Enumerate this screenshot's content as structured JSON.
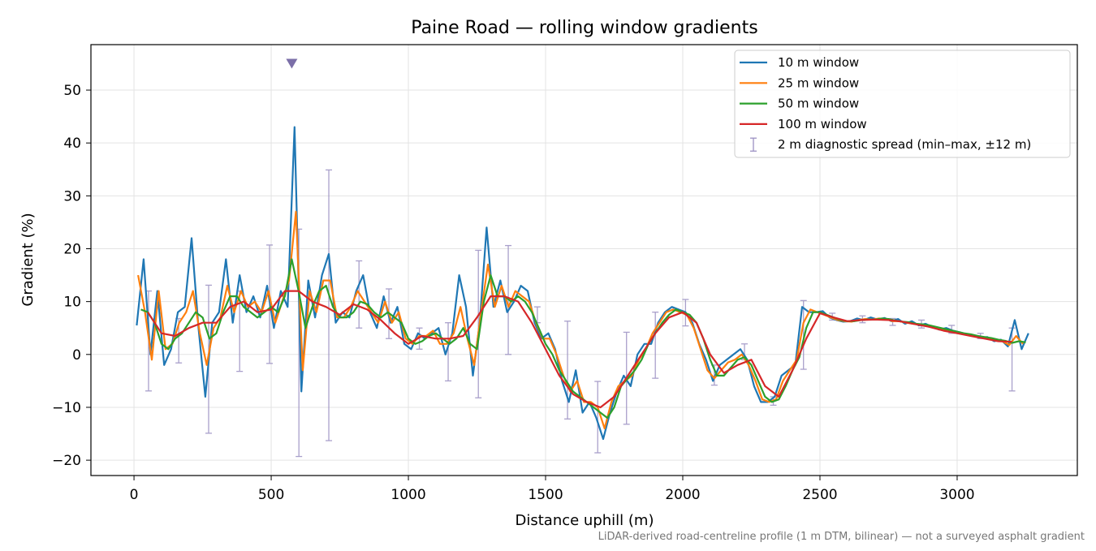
{
  "chart_data": {
    "type": "line",
    "title": "Paine Road — rolling window gradients",
    "x_label": "Distance uphill (m)",
    "y_label": "Gradient (%)",
    "footnote": "LiDAR-derived road-centreline profile (1 m DTM, bilinear) — not a surveyed asphalt gradient",
    "xlim": [
      -157,
      3438
    ],
    "ylim": [
      -22.9,
      58.6
    ],
    "xticks": [
      0,
      500,
      1000,
      1500,
      2000,
      2500,
      3000
    ],
    "yticks": [
      {
        "value": -20,
        "label": "−20"
      },
      {
        "value": -10,
        "label": "−10"
      },
      0,
      10,
      20,
      30,
      40,
      50
    ],
    "grid": true,
    "legend": "upper right",
    "series": [
      {
        "name": "10 m window",
        "color": "#1f77b4",
        "x": [
          10,
          35,
          60,
          85,
          110,
          135,
          160,
          185,
          210,
          235,
          260,
          285,
          310,
          335,
          360,
          385,
          410,
          435,
          460,
          485,
          510,
          535,
          560,
          585,
          610,
          635,
          660,
          685,
          710,
          735,
          760,
          785,
          810,
          835,
          860,
          885,
          910,
          935,
          960,
          985,
          1010,
          1035,
          1060,
          1085,
          1110,
          1135,
          1160,
          1185,
          1210,
          1235,
          1260,
          1285,
          1310,
          1335,
          1360,
          1385,
          1410,
          1435,
          1460,
          1485,
          1510,
          1535,
          1560,
          1585,
          1610,
          1635,
          1660,
          1685,
          1710,
          1735,
          1760,
          1785,
          1810,
          1835,
          1860,
          1885,
          1910,
          1935,
          1960,
          1985,
          2010,
          2035,
          2060,
          2085,
          2110,
          2135,
          2160,
          2185,
          2210,
          2235,
          2260,
          2285,
          2310,
          2335,
          2360,
          2385,
          2410,
          2435,
          2460,
          2485,
          2510,
          2535,
          2560,
          2585,
          2610,
          2635,
          2660,
          2685,
          2710,
          2735,
          2760,
          2785,
          2810,
          2835,
          2860,
          2885,
          2910,
          2935,
          2960,
          2985,
          3010,
          3035,
          3060,
          3085,
          3110,
          3135,
          3160,
          3185,
          3210,
          3235,
          3260
        ],
        "values": [
          5.5,
          18,
          0,
          12,
          -2,
          1,
          8,
          9,
          22,
          5,
          -8,
          6,
          8,
          18,
          6,
          15,
          8,
          11,
          7,
          13,
          5,
          12,
          9,
          43,
          -7,
          14,
          7,
          15,
          19,
          6,
          8,
          7,
          12,
          15,
          8,
          5,
          11,
          6,
          9,
          2,
          1,
          4,
          3,
          4,
          5,
          0,
          4,
          15,
          9,
          -4,
          6,
          24,
          9,
          14,
          8,
          10,
          13,
          12,
          6,
          3,
          4,
          1,
          -5,
          -9,
          -3,
          -11,
          -9,
          -12,
          -16,
          -11,
          -7,
          -4,
          -6,
          0,
          2,
          2,
          6,
          8,
          9,
          8.5,
          8,
          6,
          2,
          -1,
          -5,
          -2,
          -1,
          0,
          1,
          -1,
          -6,
          -9,
          -9,
          -8,
          -4,
          -3,
          -2,
          9,
          8,
          8,
          8.2,
          7,
          6.5,
          6.2,
          6.3,
          6.8,
          6.5,
          7,
          6.6,
          6.9,
          6.3,
          6.7,
          5.8,
          6.3,
          5.5,
          5.8,
          5.2,
          4.7,
          5,
          4.5,
          4.2,
          3.8,
          3.5,
          3.2,
          3.3,
          2.5,
          2.8,
          1.5,
          6.5,
          1,
          4
        ]
      },
      {
        "name": "25 m window",
        "color": "#ff7f0e",
        "x": [
          15,
          40,
          65,
          90,
          115,
          140,
          165,
          190,
          215,
          240,
          265,
          290,
          315,
          340,
          365,
          390,
          415,
          440,
          465,
          490,
          515,
          540,
          565,
          590,
          615,
          640,
          665,
          690,
          715,
          740,
          765,
          790,
          815,
          840,
          865,
          890,
          915,
          940,
          965,
          990,
          1015,
          1040,
          1065,
          1090,
          1115,
          1140,
          1165,
          1190,
          1215,
          1240,
          1265,
          1290,
          1315,
          1340,
          1365,
          1390,
          1415,
          1440,
          1465,
          1490,
          1515,
          1540,
          1565,
          1590,
          1615,
          1640,
          1665,
          1690,
          1715,
          1740,
          1765,
          1790,
          1815,
          1840,
          1865,
          1890,
          1915,
          1940,
          1965,
          1990,
          2015,
          2040,
          2065,
          2090,
          2115,
          2140,
          2165,
          2190,
          2215,
          2240,
          2265,
          2290,
          2315,
          2340,
          2365,
          2390,
          2415,
          2440,
          2465,
          2490,
          2515,
          2540,
          2565,
          2590,
          2615,
          2640,
          2665,
          2690,
          2715,
          2740,
          2765,
          2790,
          2815,
          2840,
          2865,
          2890,
          2915,
          2940,
          2965,
          2990,
          3015,
          3040,
          3065,
          3090,
          3115,
          3140,
          3165,
          3190,
          3215,
          3240
        ],
        "values": [
          15,
          8,
          -1,
          12,
          1,
          2,
          6,
          8,
          12,
          4,
          -2,
          5,
          7,
          13,
          8,
          12,
          9,
          10,
          8,
          12,
          6,
          10,
          14,
          27,
          -3,
          12,
          8,
          14,
          14,
          7,
          7,
          9,
          12,
          10,
          8,
          6,
          10,
          6,
          8,
          3,
          2,
          3.5,
          3.5,
          4.5,
          2,
          2,
          4,
          9,
          3,
          -2,
          8,
          17,
          9,
          13,
          9,
          12,
          11,
          10,
          6,
          3,
          3,
          0,
          -4,
          -7,
          -5,
          -9,
          -9,
          -10,
          -14,
          -9,
          -6,
          -5,
          -4,
          -1,
          1,
          4,
          6,
          8,
          8.5,
          8,
          7.5,
          5,
          1,
          -3,
          -4.5,
          -3,
          -1.5,
          -1,
          0,
          -2,
          -5,
          -8.5,
          -9,
          -8.5,
          -5,
          -3,
          -1,
          6,
          8.5,
          8,
          7.5,
          7,
          6.5,
          6.3,
          6.2,
          6.5,
          6.7,
          6.6,
          6.8,
          6.7,
          6.3,
          6.3,
          6,
          5.8,
          5.6,
          5.5,
          5.2,
          4.8,
          4.6,
          4.3,
          4,
          3.7,
          3.4,
          3.3,
          3,
          2.6,
          2.5,
          1.8,
          3.5,
          2
        ]
      },
      {
        "name": "50 m window",
        "color": "#2ca02c",
        "x": [
          25,
          50,
          75,
          100,
          125,
          150,
          175,
          200,
          225,
          250,
          275,
          300,
          325,
          350,
          375,
          400,
          425,
          450,
          475,
          500,
          525,
          550,
          575,
          600,
          625,
          650,
          675,
          700,
          725,
          750,
          775,
          800,
          825,
          850,
          875,
          900,
          925,
          950,
          975,
          1000,
          1025,
          1050,
          1075,
          1100,
          1125,
          1150,
          1175,
          1200,
          1225,
          1250,
          1275,
          1300,
          1325,
          1350,
          1375,
          1400,
          1425,
          1450,
          1475,
          1500,
          1525,
          1550,
          1575,
          1600,
          1625,
          1650,
          1675,
          1700,
          1725,
          1750,
          1775,
          1800,
          1825,
          1850,
          1875,
          1900,
          1925,
          1950,
          1975,
          2000,
          2025,
          2050,
          2075,
          2100,
          2125,
          2150,
          2175,
          2200,
          2225,
          2250,
          2275,
          2300,
          2325,
          2350,
          2375,
          2400,
          2425,
          2450,
          2475,
          2500,
          2525,
          2550,
          2575,
          2600,
          2625,
          2650,
          2675,
          2700,
          2725,
          2750,
          2775,
          2800,
          2825,
          2850,
          2875,
          2900,
          2925,
          2950,
          2975,
          3000,
          3025,
          3050,
          3075,
          3100,
          3125,
          3150,
          3175,
          3200,
          3225,
          3250
        ],
        "values": [
          8.5,
          8,
          6,
          2,
          1,
          3,
          4,
          6,
          8,
          7,
          3,
          4,
          8,
          11,
          11,
          9,
          8,
          7,
          8,
          9,
          8,
          11,
          18,
          12,
          5,
          9,
          12,
          13,
          9,
          7,
          7,
          8,
          10,
          9.5,
          8,
          7,
          8,
          7,
          6,
          3,
          2,
          2.5,
          3.5,
          4,
          3,
          2,
          3,
          5,
          2,
          1,
          10,
          15,
          11,
          11,
          10,
          11,
          10,
          8,
          5,
          2,
          0,
          -3,
          -5,
          -7,
          -8,
          -9,
          -10,
          -11,
          -12,
          -10,
          -6,
          -4.5,
          -3,
          -1,
          2,
          4,
          6,
          7.5,
          8.5,
          8,
          7.5,
          6,
          3,
          -1,
          -4,
          -4,
          -2.5,
          -1,
          -0.5,
          -2,
          -5,
          -8,
          -9,
          -8.5,
          -6,
          -3,
          -0.5,
          5,
          8,
          8,
          7.5,
          7,
          6.5,
          6.3,
          6.3,
          6.5,
          6.6,
          6.6,
          6.8,
          6.7,
          6.4,
          6.2,
          6.1,
          5.8,
          5.7,
          5.5,
          5.2,
          4.9,
          4.6,
          4.3,
          4,
          3.8,
          3.5,
          3.3,
          3.1,
          2.8,
          2.6,
          2.2,
          2.5,
          2.3
        ]
      },
      {
        "name": "100 m window",
        "color": "#d62728",
        "x": [
          50,
          100,
          150,
          200,
          250,
          300,
          350,
          400,
          450,
          500,
          550,
          600,
          650,
          700,
          750,
          800,
          850,
          900,
          950,
          1000,
          1050,
          1100,
          1150,
          1200,
          1250,
          1300,
          1350,
          1400,
          1450,
          1500,
          1550,
          1600,
          1650,
          1700,
          1750,
          1800,
          1850,
          1900,
          1950,
          2000,
          2050,
          2100,
          2150,
          2200,
          2250,
          2300,
          2350,
          2400,
          2450,
          2500,
          2550,
          2600,
          2650,
          2700,
          2750,
          2800,
          2850,
          2900,
          2950,
          3000,
          3050,
          3100,
          3150,
          3200
        ],
        "values": [
          8,
          4,
          3.5,
          5,
          6,
          6,
          9,
          10,
          8,
          8.5,
          12,
          12,
          10,
          9,
          7.5,
          9.5,
          8.5,
          6.5,
          4,
          2,
          3.5,
          3,
          3,
          3.5,
          7,
          11,
          11,
          10,
          6,
          1,
          -4,
          -7.5,
          -9,
          -10,
          -8,
          -4,
          0,
          4,
          7,
          8,
          6,
          0,
          -3.5,
          -2,
          -1,
          -6,
          -8,
          -3,
          3,
          7.8,
          7,
          6.3,
          6.5,
          6.6,
          6.5,
          6.2,
          5.7,
          5.2,
          4.5,
          4,
          3.5,
          3,
          2.5,
          2.4
        ]
      }
    ],
    "errorbars": {
      "name": "2 m diagnostic spread (min–max, ±12 m)",
      "color": "#9b90c2",
      "x": [
        53,
        163,
        272,
        385,
        494,
        601,
        710,
        820,
        929,
        1040,
        1145,
        1255,
        1364,
        1470,
        1580,
        1690,
        1795,
        1900,
        2010,
        2115,
        2225,
        2330,
        2440,
        2545,
        2655,
        2765,
        2870,
        2980,
        3085,
        3200
      ],
      "low": [
        -6.9,
        -1.6,
        -14.9,
        -3.2,
        -1.7,
        -19.3,
        -16.3,
        5,
        3,
        1,
        -5,
        -8.2,
        0,
        6,
        -12.2,
        -18.6,
        -13.2,
        -4.5,
        5.4,
        -5.8,
        -1,
        -9.6,
        -2.8,
        6.5,
        6,
        5.5,
        5,
        4,
        3,
        -6.9
      ],
      "high": [
        12,
        6.8,
        13.1,
        12,
        20.7,
        23.7,
        34.9,
        17.7,
        12.4,
        5,
        6,
        19.7,
        20.6,
        9,
        6.3,
        -5.1,
        4.2,
        8,
        10.4,
        -2,
        2,
        -8,
        10.2,
        7.8,
        7.3,
        6.8,
        6.5,
        5.5,
        4,
        5
      ]
    },
    "peak_marker": {
      "x": 575,
      "y": 55,
      "color": "#7b6fa8"
    }
  }
}
